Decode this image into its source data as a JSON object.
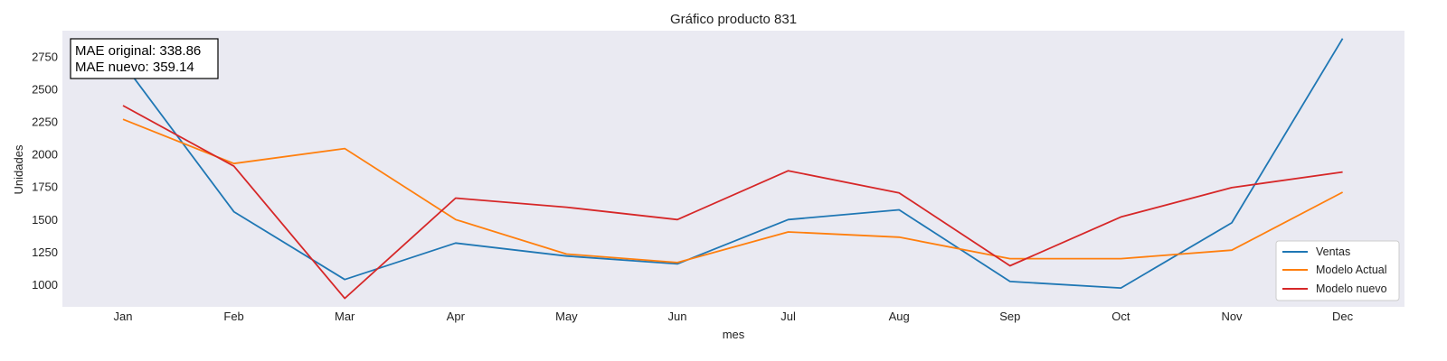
{
  "chart_data": {
    "type": "line",
    "title": "Gráfico producto 831",
    "xlabel": "mes",
    "ylabel": "Unidades",
    "categories": [
      "Jan",
      "Feb",
      "Mar",
      "Apr",
      "May",
      "Jun",
      "Jul",
      "Aug",
      "Sep",
      "Oct",
      "Nov",
      "Dec"
    ],
    "yticks": [
      1000,
      1250,
      1500,
      1750,
      2000,
      2250,
      2500,
      2750
    ],
    "ylim": [
      830,
      2950
    ],
    "grid": false,
    "background": "#EAEAF2",
    "legend_position": "bottom-right",
    "series": [
      {
        "name": "Ventas",
        "color": "#1F77B4",
        "values": [
          2700,
          1560,
          1040,
          1320,
          1220,
          1160,
          1500,
          1575,
          1025,
          975,
          1475,
          2890
        ]
      },
      {
        "name": "Modelo Actual",
        "color": "#FF7F0E",
        "values": [
          2270,
          1930,
          2045,
          1500,
          1235,
          1170,
          1405,
          1365,
          1200,
          1200,
          1265,
          1710
        ]
      },
      {
        "name": "Modelo nuevo",
        "color": "#D62728",
        "values": [
          2375,
          1910,
          895,
          1665,
          1595,
          1500,
          1875,
          1705,
          1145,
          1520,
          1745,
          1865
        ]
      }
    ],
    "annotation": {
      "lines": [
        "MAE original: 338.86",
        "MAE nuevo: 359.14"
      ],
      "position": "top-left"
    }
  }
}
